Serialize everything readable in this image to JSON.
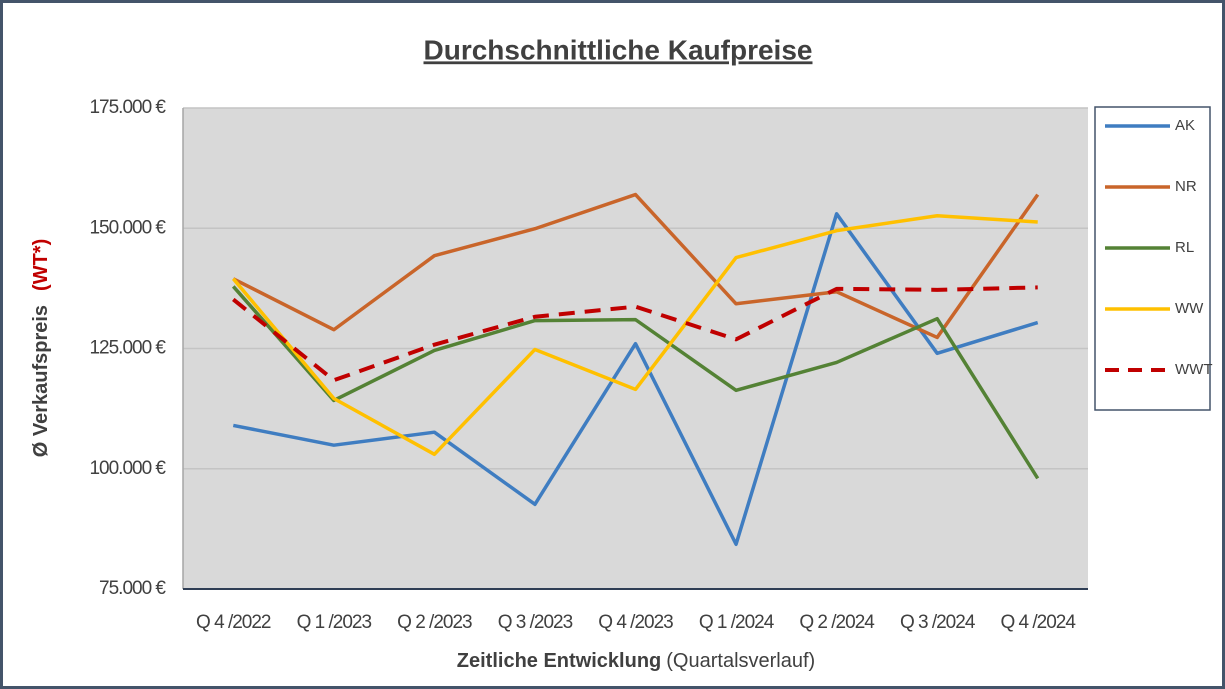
{
  "chart_data": {
    "type": "line",
    "title": "Durchschnittliche Kaufpreise",
    "y_label": "Ø Verkaufspreis",
    "y_label_note": "(WT*)",
    "x_label": "Zeitliche Entwicklung",
    "x_label_note": "(Quartalsverlauf)",
    "categories": [
      "Q 4 /2022",
      "Q 1 /2023",
      "Q 2 /2023",
      "Q 3 /2023",
      "Q 4 /2023",
      "Q 1 /2024",
      "Q 2 /2024",
      "Q 3 /2024",
      "Q 4 /2024"
    ],
    "series": [
      {
        "name": "AK",
        "color": "#3f7dc1",
        "values": [
          109000,
          104900,
          107600,
          92600,
          126000,
          84300,
          153000,
          124000,
          130400
        ]
      },
      {
        "name": "NR",
        "color": "#c9652a",
        "values": [
          139500,
          128900,
          144300,
          149900,
          157000,
          134300,
          136800,
          127300,
          157000
        ]
      },
      {
        "name": "RL",
        "color": "#548235",
        "values": [
          137900,
          114200,
          124600,
          130800,
          131000,
          116300,
          122100,
          131200,
          98000
        ]
      },
      {
        "name": "WW",
        "color": "#ffc000",
        "values": [
          139500,
          114600,
          103000,
          124800,
          116500,
          143900,
          149500,
          152600,
          151300
        ]
      },
      {
        "name": "WWT",
        "color": "#c00000",
        "dashed": true,
        "values": [
          135200,
          118400,
          125800,
          131600,
          133700,
          126900,
          137400,
          137200,
          137700
        ]
      }
    ],
    "ylim": [
      75000,
      175000
    ],
    "yticks": [
      {
        "value": 75000,
        "label": "75.000 €"
      },
      {
        "value": 100000,
        "label": "100.000 €"
      },
      {
        "value": 125000,
        "label": "125.000 €"
      },
      {
        "value": 150000,
        "label": "150.000 €"
      },
      {
        "value": 175000,
        "label": "175.000 €"
      }
    ],
    "grid": true,
    "legend": "right"
  }
}
